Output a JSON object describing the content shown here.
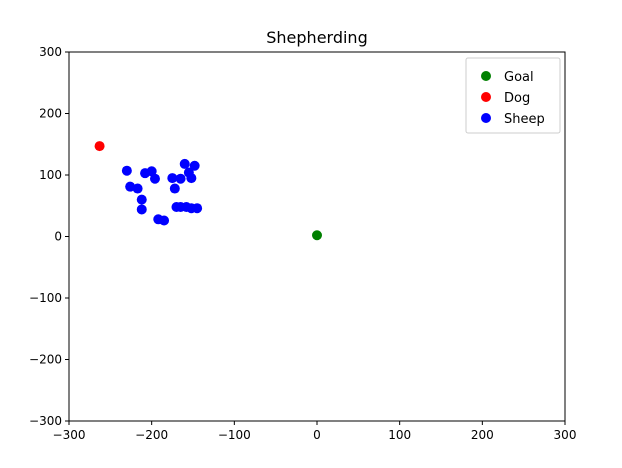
{
  "chart_data": {
    "type": "scatter",
    "title": "Shepherding",
    "xlabel": "",
    "ylabel": "",
    "xlim": [
      -300,
      300
    ],
    "ylim": [
      -300,
      300
    ],
    "xticks": [
      -300,
      -200,
      -100,
      0,
      100,
      200,
      300
    ],
    "yticks": [
      300,
      200,
      100,
      0,
      -100,
      -200,
      -300
    ],
    "xtick_labels": [
      "−300",
      "−200",
      "−100",
      "0",
      "100",
      "200",
      "300"
    ],
    "ytick_labels": [
      "300",
      "200",
      "100",
      "0",
      "−100",
      "−200",
      "−300"
    ],
    "grid": false,
    "legend_position": "top-right",
    "series": [
      {
        "name": "Goal",
        "color": "#008000",
        "points": [
          [
            0,
            2
          ]
        ]
      },
      {
        "name": "Dog",
        "color": "#ff0000",
        "points": [
          [
            -263,
            147
          ]
        ]
      },
      {
        "name": "Sheep",
        "color": "#0000ff",
        "points": [
          [
            -230,
            107
          ],
          [
            -226,
            81
          ],
          [
            -217,
            78
          ],
          [
            -212,
            60
          ],
          [
            -212,
            44
          ],
          [
            -208,
            103
          ],
          [
            -200,
            106
          ],
          [
            -196,
            94
          ],
          [
            -192,
            28
          ],
          [
            -185,
            26
          ],
          [
            -175,
            95
          ],
          [
            -172,
            78
          ],
          [
            -170,
            48
          ],
          [
            -165,
            48
          ],
          [
            -165,
            94
          ],
          [
            -160,
            118
          ],
          [
            -158,
            48
          ],
          [
            -155,
            104
          ],
          [
            -152,
            46
          ],
          [
            -152,
            95
          ],
          [
            -148,
            115
          ],
          [
            -145,
            46
          ]
        ]
      }
    ]
  }
}
